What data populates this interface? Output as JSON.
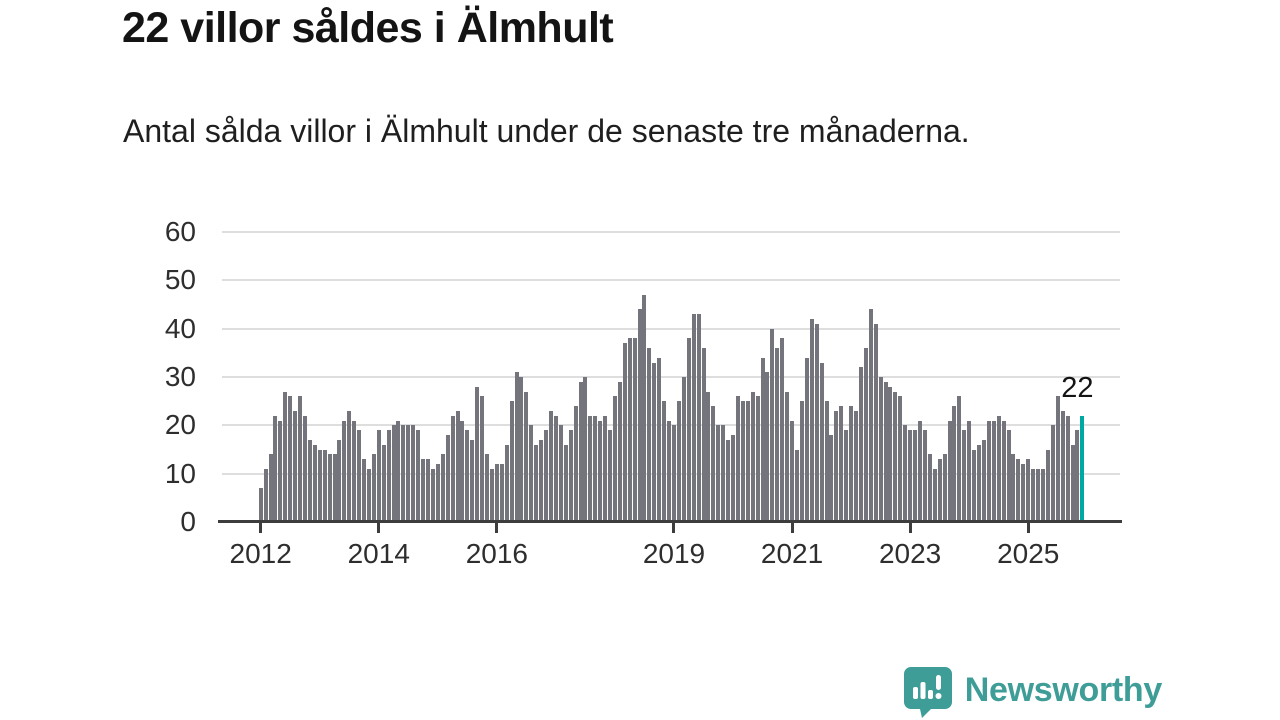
{
  "header": {
    "title": "22 villor såldes i Älmhult",
    "subtitle": "Antal sålda villor i Älmhult under de senaste tre månaderna."
  },
  "annotation": {
    "label": "22"
  },
  "footer": {
    "brand": "Newsworthy",
    "logo_icon": "bar-chart-speech-bubble-icon"
  },
  "colors": {
    "bar": "#74747c",
    "highlight": "#00a8a3",
    "grid": "#dedede",
    "axis": "#3d3d3d",
    "logo": "#3f9d98"
  },
  "chart_data": {
    "type": "bar",
    "title": "22 villor såldes i Älmhult",
    "subtitle": "Antal sålda villor i Älmhult under de senaste tre månaderna.",
    "xlabel": "",
    "ylabel": "",
    "x_unit": "month",
    "x_start": "2012-01",
    "ylim": [
      0,
      60
    ],
    "y_ticks": [
      0,
      10,
      20,
      30,
      40,
      50,
      60
    ],
    "x_tick_years": [
      2012,
      2014,
      2016,
      2019,
      2021,
      2023,
      2025
    ],
    "grid": true,
    "legend": false,
    "highlight_index": 167,
    "highlight_value": 22,
    "values": [
      7,
      11,
      14,
      22,
      21,
      27,
      26,
      23,
      26,
      22,
      17,
      16,
      15,
      15,
      14,
      14,
      17,
      21,
      23,
      21,
      19,
      13,
      11,
      14,
      19,
      16,
      19,
      20,
      21,
      20,
      20,
      20,
      19,
      13,
      13,
      11,
      12,
      14,
      18,
      22,
      23,
      21,
      19,
      17,
      28,
      26,
      14,
      11,
      12,
      12,
      16,
      25,
      31,
      30,
      27,
      20,
      16,
      17,
      19,
      23,
      22,
      20,
      16,
      19,
      24,
      29,
      30,
      22,
      22,
      21,
      22,
      19,
      26,
      29,
      37,
      38,
      38,
      44,
      47,
      36,
      33,
      34,
      25,
      21,
      20,
      25,
      30,
      38,
      43,
      43,
      36,
      27,
      24,
      20,
      20,
      17,
      18,
      26,
      25,
      25,
      27,
      26,
      34,
      31,
      40,
      36,
      38,
      27,
      21,
      15,
      25,
      34,
      42,
      41,
      33,
      25,
      18,
      23,
      24,
      19,
      24,
      23,
      32,
      36,
      44,
      41,
      30,
      29,
      28,
      27,
      26,
      20,
      19,
      19,
      21,
      19,
      14,
      11,
      13,
      14,
      21,
      24,
      26,
      19,
      21,
      15,
      16,
      17,
      21,
      21,
      22,
      21,
      19,
      14,
      13,
      12,
      13,
      11,
      11,
      11,
      15,
      20,
      26,
      23,
      22,
      16,
      19,
      22
    ]
  }
}
